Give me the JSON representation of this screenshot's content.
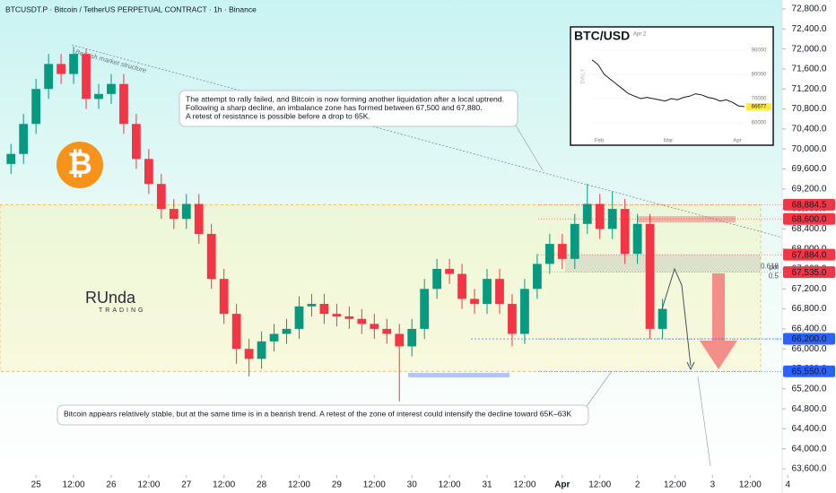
{
  "chart_data": {
    "type": "candlestick",
    "title": "BTCUSDT.P · Bitcoin / TetherUS PERPETUAL CONTRACT · 1h · Binance",
    "up_color": "#089981",
    "down_color": "#f23645",
    "x": [
      -8,
      -4,
      0,
      4,
      8,
      12,
      16,
      20,
      24,
      28,
      32,
      36,
      40,
      44,
      48,
      52,
      56,
      60,
      64,
      68,
      72,
      76,
      80,
      84,
      88,
      92,
      96,
      100,
      104,
      108,
      112,
      116,
      120,
      124,
      128,
      132,
      136,
      140,
      144,
      148,
      152,
      156,
      160,
      164,
      168,
      172,
      176,
      180,
      184,
      188,
      192,
      196,
      200
    ],
    "open": [
      69700,
      69900,
      70500,
      71200,
      71700,
      71500,
      71900,
      71000,
      71100,
      71300,
      70500,
      69800,
      69300,
      68800,
      68600,
      68900,
      68300,
      67400,
      66700,
      66000,
      65800,
      66150,
      66300,
      66400,
      66850,
      66900,
      66700,
      66650,
      66600,
      66500,
      66400,
      66300,
      66050,
      66400,
      67200,
      67600,
      67500,
      67000,
      66900,
      67400,
      66900,
      66300,
      67200,
      67700,
      68100,
      67800,
      68500,
      68900,
      68400,
      68800,
      67900,
      68500,
      66400
    ],
    "high": [
      70100,
      70700,
      71400,
      71900,
      71900,
      72050,
      72000,
      71300,
      71500,
      71500,
      70700,
      70000,
      69500,
      69000,
      69100,
      69100,
      68500,
      67600,
      66900,
      66200,
      66350,
      66500,
      66600,
      67050,
      67100,
      67100,
      66900,
      66850,
      66800,
      66700,
      66600,
      66500,
      66600,
      67400,
      67800,
      67800,
      67700,
      67200,
      67600,
      67600,
      67100,
      67400,
      67900,
      68300,
      68300,
      68700,
      69300,
      69100,
      69150,
      69000,
      68700,
      68700,
      67000
    ],
    "low": [
      69500,
      69700,
      70300,
      71000,
      71300,
      71300,
      70800,
      70800,
      70900,
      70300,
      69600,
      69100,
      68600,
      68400,
      68400,
      68100,
      67200,
      66500,
      65700,
      65450,
      65600,
      65950,
      66100,
      66200,
      66650,
      66500,
      66450,
      66400,
      66300,
      66200,
      66100,
      64950,
      65850,
      66200,
      67000,
      67300,
      66800,
      66700,
      66700,
      66700,
      66050,
      66100,
      67000,
      67500,
      67600,
      67600,
      68300,
      68200,
      68200,
      67700,
      67700,
      66200,
      66200
    ],
    "close": [
      69900,
      70500,
      71200,
      71700,
      71500,
      71900,
      71000,
      71100,
      71300,
      70500,
      69800,
      69300,
      68800,
      68600,
      68900,
      68300,
      67400,
      66700,
      66000,
      65800,
      66150,
      66300,
      66400,
      66850,
      66900,
      66700,
      66650,
      66600,
      66500,
      66400,
      66300,
      66050,
      66400,
      67200,
      67600,
      67500,
      67000,
      66900,
      67400,
      66900,
      66300,
      67200,
      67700,
      68100,
      67800,
      68500,
      68900,
      68400,
      68800,
      67900,
      68500,
      66400,
      66800
    ],
    "xlim": [
      -11.5,
      240.5
    ],
    "xticks": [
      {
        "value": 0,
        "label": "25"
      },
      {
        "value": 12,
        "label": "12:00"
      },
      {
        "value": 24,
        "label": "26"
      },
      {
        "value": 36,
        "label": "12:00"
      },
      {
        "value": 48,
        "label": "27"
      },
      {
        "value": 60,
        "label": "12:00"
      },
      {
        "value": 72,
        "label": "28"
      },
      {
        "value": 84,
        "label": "12:00"
      },
      {
        "value": 96,
        "label": "29"
      },
      {
        "value": 108,
        "label": "12:00"
      },
      {
        "value": 120,
        "label": "30"
      },
      {
        "value": 132,
        "label": "12:00"
      },
      {
        "value": 144,
        "label": "31"
      },
      {
        "value": 156,
        "label": "12:00"
      },
      {
        "value": 168,
        "label": "Apr"
      },
      {
        "value": 180,
        "label": "12:00"
      },
      {
        "value": 192,
        "label": "2"
      },
      {
        "value": 204,
        "label": "12:00"
      },
      {
        "value": 216,
        "label": "3"
      },
      {
        "value": 228,
        "label": "12:00"
      },
      {
        "value": 240,
        "label": "4"
      }
    ],
    "ylim": [
      63475,
      72980
    ],
    "yticks": [
      {
        "value": 63600,
        "label": "63,600.0"
      },
      {
        "value": 64000,
        "label": "64,000.0"
      },
      {
        "value": 64400,
        "label": "64,400.0"
      },
      {
        "value": 64800,
        "label": "64,800.0"
      },
      {
        "value": 65200,
        "label": "65,200.0"
      },
      {
        "value": 65600,
        "label": "65,600.0"
      },
      {
        "value": 66000,
        "label": "66,000.0"
      },
      {
        "value": 66400,
        "label": "66,400.0"
      },
      {
        "value": 66800,
        "label": "66,800.0"
      },
      {
        "value": 67200,
        "label": "67,200.0"
      },
      {
        "value": 67600,
        "label": "67,600.0"
      },
      {
        "value": 68000,
        "label": "68,000.0"
      },
      {
        "value": 68400,
        "label": "68,400.0"
      },
      {
        "value": 68800,
        "label": "68,800.0"
      },
      {
        "value": 69200,
        "label": "69,200.0"
      },
      {
        "value": 69600,
        "label": "69,600.0"
      },
      {
        "value": 70000,
        "label": "70,000.0"
      },
      {
        "value": 70400,
        "label": "70,400.0"
      },
      {
        "value": 70800,
        "label": "70,800.0"
      },
      {
        "value": 71200,
        "label": "71,200.0"
      },
      {
        "value": 71600,
        "label": "71,600.0"
      },
      {
        "value": 72000,
        "label": "72,000.0"
      },
      {
        "value": 72400,
        "label": "72,400.0"
      },
      {
        "value": 72800,
        "label": "72,800.0"
      }
    ],
    "grid": false,
    "price_tags": [
      {
        "value": 68884.5,
        "label": "68,884.5",
        "color": "#f23645"
      },
      {
        "value": 68600,
        "label": "68,600.0",
        "color": "#f23645"
      },
      {
        "value": 67884,
        "label": "67,884.0",
        "color": "#f23645"
      },
      {
        "value": 67535,
        "label": "67,535.0",
        "color": "#f23645"
      },
      {
        "value": 66200,
        "label": "66,200.0",
        "color": "#2962ff"
      },
      {
        "value": 65550,
        "label": "65,550.0",
        "color": "#2962ff"
      }
    ],
    "fib_labels": [
      "0.618",
      "poi",
      "0.5"
    ],
    "trendline_label": "Bearish market structure",
    "notes": [
      [
        "The attempt to rally failed, and Bitcoin is now forming another liquidation after a local uptrend.",
        "Following a sharp decline, an imbalance zone has formed between 67,500 and 67,880.",
        "A retest of resistance is possible before a drop to 65K."
      ],
      [
        "Bitcoin appears relatively stable, but at the same time is in a bearish trend. A retest of the zone of interest could intensify the decline toward 65K–63K"
      ]
    ],
    "logo_symbol": "₿",
    "watermark": [
      "RUnda",
      "TRADING"
    ],
    "inset": {
      "type": "line",
      "title": "BTC/USD",
      "date": "Apr 2",
      "side_label": "DAILY",
      "values": [
        86000,
        84000,
        80000,
        78000,
        76000,
        74000,
        72000,
        71000,
        70000,
        70500,
        70000,
        69500,
        69000,
        70000,
        69500,
        70500,
        71000,
        72000,
        71500,
        70500,
        70000,
        69000,
        69500,
        68500,
        67000,
        66677
      ],
      "ylim": [
        55200,
        99600
      ],
      "yticks": [
        90000,
        80000,
        70000,
        60000
      ],
      "last_label": "66677",
      "months": [
        "Feb",
        "Mar",
        "Apr"
      ],
      "color": "#131722"
    }
  }
}
